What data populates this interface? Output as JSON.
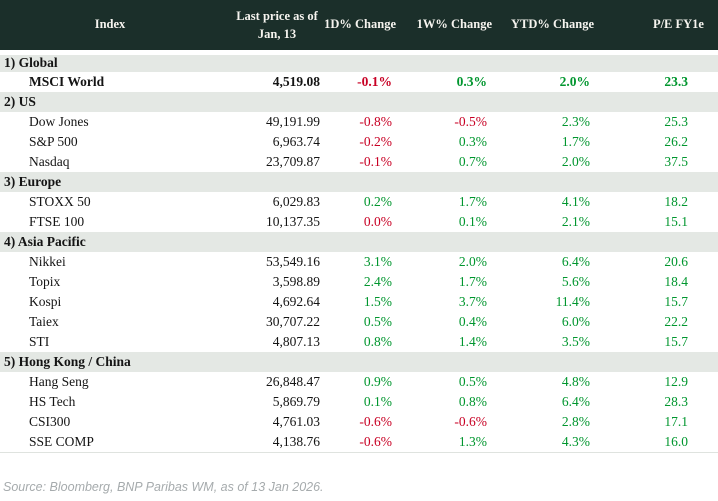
{
  "colors": {
    "header-bg": "#1b2f2a",
    "header-text": "#f6f4ef",
    "section-bg": "#e4e8e4",
    "positive": "#00962e",
    "negative": "#c80024",
    "text": "#141414",
    "source-text": "#a6abad"
  },
  "table": {
    "columns": [
      {
        "label": "Index"
      },
      {
        "label": "Last price as of\nJan, 13"
      },
      {
        "label": "1D% Change"
      },
      {
        "label": "1W% Change"
      },
      {
        "label": "YTD% Change"
      },
      {
        "label": "P/E FY1e"
      }
    ],
    "sections": [
      {
        "label": "1) Global",
        "rows": [
          {
            "name": "MSCI World",
            "bold": true,
            "values": [
              "4,519.08",
              "-0.1%",
              "0.3%",
              "2.0%",
              "23.3"
            ],
            "colors": [
              "dark",
              "red",
              "green",
              "green",
              "green"
            ]
          }
        ]
      },
      {
        "label": "2) US",
        "rows": [
          {
            "name": "Dow Jones",
            "values": [
              "49,191.99",
              "-0.8%",
              "-0.5%",
              "2.3%",
              "25.3"
            ],
            "colors": [
              "dark",
              "red",
              "red",
              "green",
              "green"
            ]
          },
          {
            "name": "S&P 500",
            "values": [
              "6,963.74",
              "-0.2%",
              "0.3%",
              "1.7%",
              "26.2"
            ],
            "colors": [
              "dark",
              "red",
              "green",
              "green",
              "green"
            ]
          },
          {
            "name": "Nasdaq",
            "values": [
              "23,709.87",
              "-0.1%",
              "0.7%",
              "2.0%",
              "37.5"
            ],
            "colors": [
              "dark",
              "red",
              "green",
              "green",
              "green"
            ]
          }
        ]
      },
      {
        "label": "3) Europe",
        "rows": [
          {
            "name": "STOXX 50",
            "values": [
              "6,029.83",
              "0.2%",
              "1.7%",
              "4.1%",
              "18.2"
            ],
            "colors": [
              "dark",
              "green",
              "green",
              "green",
              "green"
            ]
          },
          {
            "name": "FTSE 100",
            "values": [
              "10,137.35",
              "0.0%",
              "0.1%",
              "2.1%",
              "15.1"
            ],
            "colors": [
              "dark",
              "red",
              "green",
              "green",
              "green"
            ]
          }
        ]
      },
      {
        "label": "4) Asia Pacific",
        "rows": [
          {
            "name": "Nikkei",
            "values": [
              "53,549.16",
              "3.1%",
              "2.0%",
              "6.4%",
              "20.6"
            ],
            "colors": [
              "dark",
              "green",
              "green",
              "green",
              "green"
            ]
          },
          {
            "name": "Topix",
            "values": [
              "3,598.89",
              "2.4%",
              "1.7%",
              "5.6%",
              "18.4"
            ],
            "colors": [
              "dark",
              "green",
              "green",
              "green",
              "green"
            ]
          },
          {
            "name": "Kospi",
            "values": [
              "4,692.64",
              "1.5%",
              "3.7%",
              "11.4%",
              "15.7"
            ],
            "colors": [
              "dark",
              "green",
              "green",
              "green",
              "green"
            ]
          },
          {
            "name": "Taiex",
            "values": [
              "30,707.22",
              "0.5%",
              "0.4%",
              "6.0%",
              "22.2"
            ],
            "colors": [
              "dark",
              "green",
              "green",
              "green",
              "green"
            ]
          },
          {
            "name": "STI",
            "values": [
              "4,807.13",
              "0.8%",
              "1.4%",
              "3.5%",
              "15.7"
            ],
            "colors": [
              "dark",
              "green",
              "green",
              "green",
              "green"
            ]
          }
        ]
      },
      {
        "label": "5) Hong Kong / China",
        "rows": [
          {
            "name": "Hang Seng",
            "values": [
              "26,848.47",
              "0.9%",
              "0.5%",
              "4.8%",
              "12.9"
            ],
            "colors": [
              "dark",
              "green",
              "green",
              "green",
              "green"
            ]
          },
          {
            "name": "HS Tech",
            "values": [
              "5,869.79",
              "0.1%",
              "0.8%",
              "6.4%",
              "28.3"
            ],
            "colors": [
              "dark",
              "green",
              "green",
              "green",
              "green"
            ]
          },
          {
            "name": "CSI300",
            "values": [
              "4,761.03",
              "-0.6%",
              "-0.6%",
              "2.8%",
              "17.1"
            ],
            "colors": [
              "dark",
              "red",
              "red",
              "green",
              "green"
            ]
          },
          {
            "name": "SSE COMP",
            "values": [
              "4,138.76",
              "-0.6%",
              "1.3%",
              "4.3%",
              "16.0"
            ],
            "colors": [
              "dark",
              "red",
              "green",
              "green",
              "green"
            ]
          }
        ]
      }
    ]
  },
  "footer": {
    "text": "Source: Bloomberg, BNP Paribas WM, as of 13 Jan 2026."
  }
}
